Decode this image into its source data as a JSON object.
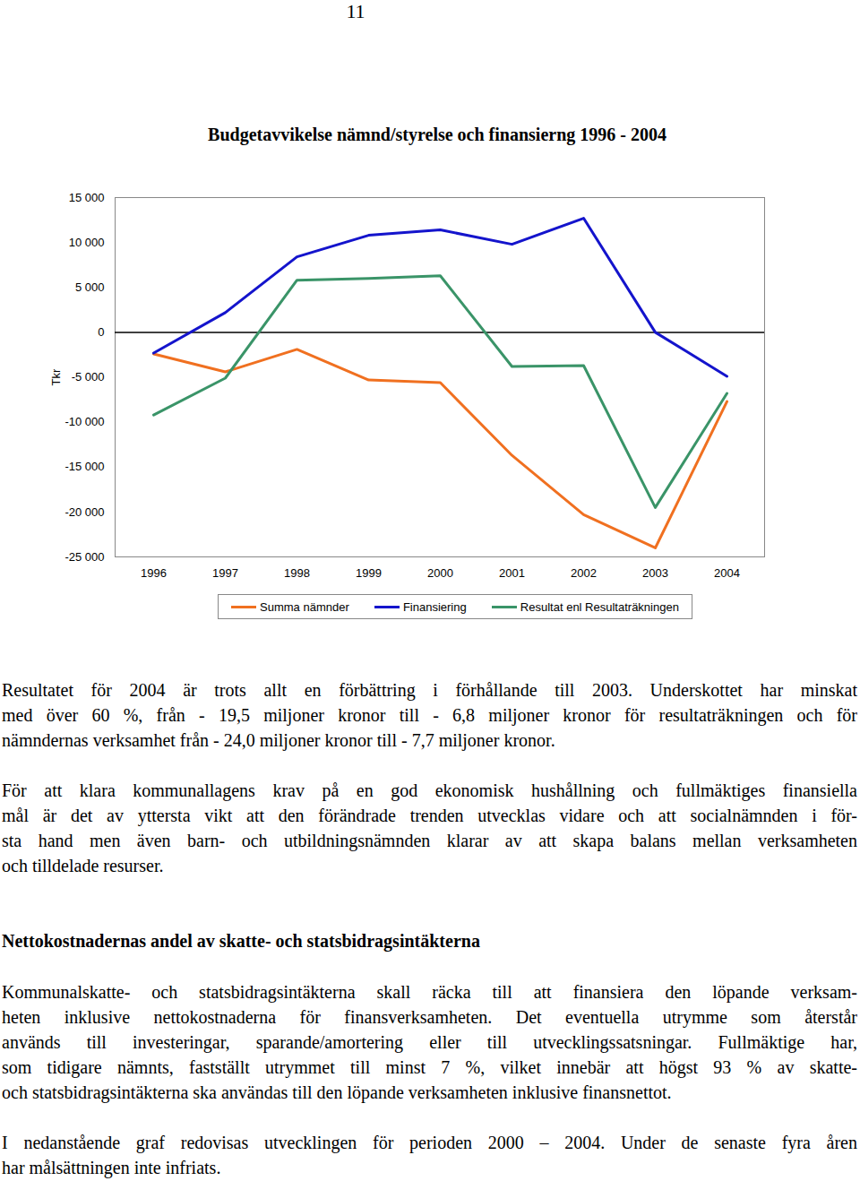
{
  "page_number": "11",
  "chart_data": {
    "type": "line",
    "title": "Budgetavvikelse nämnd/styrelse och finansierng 1996 - 2004",
    "ylabel": "Tkr",
    "categories": [
      "1996",
      "1997",
      "1998",
      "1999",
      "2000",
      "2001",
      "2002",
      "2003",
      "2004"
    ],
    "series": [
      {
        "name": "Summa nämnder",
        "color": "#f07020",
        "values": [
          -2400,
          -4400,
          -1900,
          -5300,
          -5600,
          -13700,
          -20300,
          -24000,
          -7700
        ]
      },
      {
        "name": "Finansiering",
        "color": "#1414cc",
        "values": [
          -2300,
          2200,
          8400,
          10800,
          11400,
          9800,
          12700,
          0,
          -4900
        ]
      },
      {
        "name": "Resultat enl Resultaträkningen",
        "color": "#3a9468",
        "values": [
          -9200,
          -5100,
          5800,
          6000,
          6300,
          -3800,
          -3700,
          -19500,
          -6800
        ]
      }
    ],
    "ylim": [
      -25000,
      15000
    ],
    "yticks": [
      {
        "value": -25000,
        "label": "-25 000"
      },
      {
        "value": -20000,
        "label": "-20 000"
      },
      {
        "value": -15000,
        "label": "-15 000"
      },
      {
        "value": -10000,
        "label": "-10 000"
      },
      {
        "value": -5000,
        "label": "-5 000"
      },
      0,
      {
        "value": 5000,
        "label": "5 000"
      },
      {
        "value": 10000,
        "label": "10 000"
      },
      {
        "value": 15000,
        "label": "15 000"
      }
    ],
    "grid": false,
    "legend": "bottom"
  },
  "text_blocks": [
    {
      "type": "paragraph",
      "lines": [
        "Resultatet för 2004 är trots allt en förbättring i förhållande till 2003. Underskottet har minskat",
        "med över 60 %, från - 19,5 miljoner kronor till - 6,8 miljoner kronor för resultaträkningen och för",
        "nämndernas verksamhet från - 24,0 miljoner kronor till - 7,7 miljoner kronor."
      ]
    },
    {
      "type": "paragraph",
      "lines": [
        "För att klara kommunallagens krav på en god ekonomisk hushållning och fullmäktiges finansiella",
        "mål är det av yttersta vikt att den förändrade trenden utvecklas vidare och att socialnämnden i för-",
        "sta hand men även barn- och utbildningsnämnden klarar av att skapa balans mellan verksamheten",
        "och tilldelade resurser."
      ]
    },
    {
      "type": "heading",
      "lines": [
        "Nettokostnadernas andel av skatte- och statsbidragsintäkterna"
      ]
    },
    {
      "type": "paragraph",
      "lines": [
        "Kommunalskatte- och statsbidragsintäkterna skall räcka till att finansiera den löpande verksam-",
        "heten inklusive nettokostnaderna för finansverksamheten. Det eventuella utrymme som återstår",
        "används till investeringar, sparande/amortering eller till utvecklingssatsningar. Fullmäktige har,",
        "som tidigare nämnts, fastställt utrymmet till minst 7 %, vilket innebär att högst 93 % av skatte-",
        "och statsbidragsintäkterna ska användas till den löpande verksamheten inklusive finansnettot."
      ]
    },
    {
      "type": "paragraph",
      "lines": [
        "I nedanstående graf redovisas utvecklingen för perioden 2000 – 2004. Under de senaste fyra åren",
        "har målsättningen inte infriats."
      ]
    }
  ]
}
